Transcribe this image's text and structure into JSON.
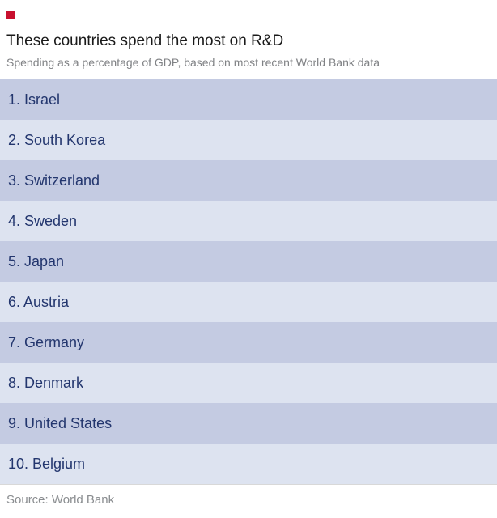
{
  "header": {
    "logo_color": "#c8102e",
    "title": "These countries spend the most on R&D",
    "subtitle": "Spending as a percentage of GDP, based on most recent World Bank data"
  },
  "rows": [
    {
      "label": "1. Israel"
    },
    {
      "label": "2. South Korea"
    },
    {
      "label": "3. Switzerland"
    },
    {
      "label": "4. Sweden"
    },
    {
      "label": "5. Japan"
    },
    {
      "label": "6. Austria"
    },
    {
      "label": "7. Germany"
    },
    {
      "label": "8. Denmark"
    },
    {
      "label": "9. United States"
    },
    {
      "label": "10. Belgium"
    }
  ],
  "footer": {
    "source": "Source: World Bank"
  },
  "colors": {
    "row_dark": "#c4cbe2",
    "row_light": "#dde3f0",
    "row_text": "#23366e",
    "logo": "#c8102e"
  },
  "chart_data": {
    "type": "table",
    "title": "These countries spend the most on R&D",
    "subtitle": "Spending as a percentage of GDP, based on most recent World Bank data",
    "ranking": [
      {
        "rank": 1,
        "country": "Israel"
      },
      {
        "rank": 2,
        "country": "South Korea"
      },
      {
        "rank": 3,
        "country": "Switzerland"
      },
      {
        "rank": 4,
        "country": "Sweden"
      },
      {
        "rank": 5,
        "country": "Japan"
      },
      {
        "rank": 6,
        "country": "Austria"
      },
      {
        "rank": 7,
        "country": "Germany"
      },
      {
        "rank": 8,
        "country": "Denmark"
      },
      {
        "rank": 9,
        "country": "United States"
      },
      {
        "rank": 10,
        "country": "Belgium"
      }
    ],
    "values_shown": false,
    "source": "Source: World Bank",
    "layout": {
      "legend": "none",
      "grid": false
    }
  }
}
